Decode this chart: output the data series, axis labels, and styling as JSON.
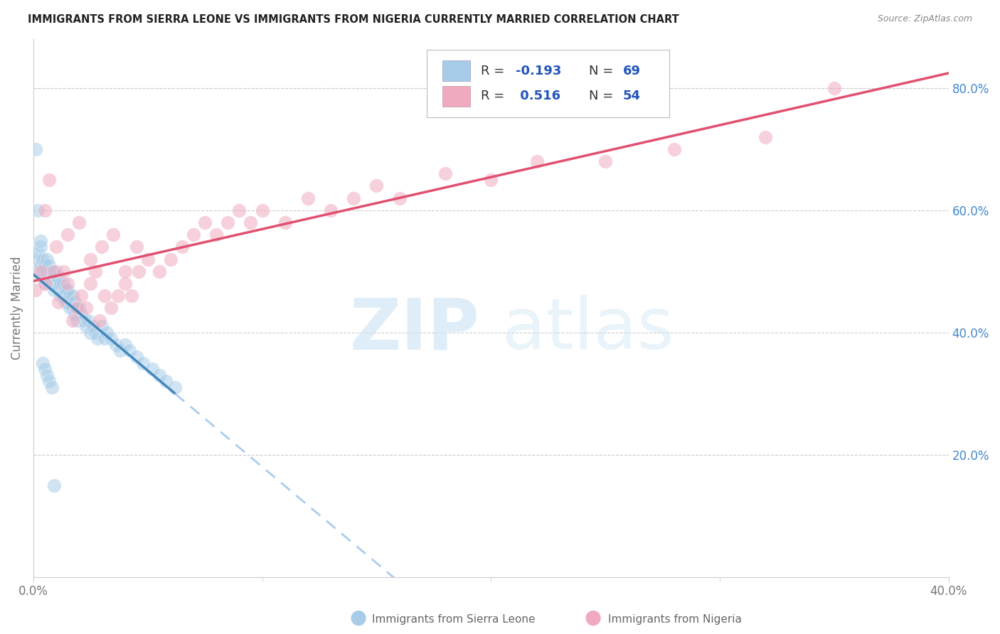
{
  "title": "IMMIGRANTS FROM SIERRA LEONE VS IMMIGRANTS FROM NIGERIA CURRENTLY MARRIED CORRELATION CHART",
  "source": "Source: ZipAtlas.com",
  "ylabel": "Currently Married",
  "xlim": [
    0.0,
    0.4
  ],
  "ylim": [
    0.0,
    0.88
  ],
  "x_ticks": [
    0.0,
    0.4
  ],
  "x_tick_labels": [
    "0.0%",
    "40.0%"
  ],
  "y_ticks_right": [
    0.2,
    0.4,
    0.6,
    0.8
  ],
  "y_tick_labels_right": [
    "20.0%",
    "40.0%",
    "60.0%",
    "80.0%"
  ],
  "R_sl": -0.193,
  "N_sl": 69,
  "R_ng": 0.516,
  "N_ng": 54,
  "color_blue": "#A8CCE8",
  "color_pink": "#F0AABF",
  "color_line_blue_solid": "#4488BB",
  "color_line_blue_dashed": "#AACCEE",
  "color_line_pink": "#E05070",
  "watermark_color": "#D0E6F5",
  "grid_color": "#CCCCCC",
  "title_color": "#222222",
  "source_color": "#888888",
  "label_color": "#777777",
  "right_axis_color": "#4488CC",
  "legend_text_color": "#333333",
  "legend_num_color": "#2255BB",
  "bottom_label_color": "#666666",
  "sl_x": [
    0.001,
    0.002,
    0.002,
    0.003,
    0.003,
    0.004,
    0.004,
    0.005,
    0.005,
    0.006,
    0.006,
    0.007,
    0.007,
    0.008,
    0.008,
    0.009,
    0.009,
    0.01,
    0.01,
    0.011,
    0.011,
    0.012,
    0.012,
    0.013,
    0.013,
    0.014,
    0.014,
    0.015,
    0.015,
    0.016,
    0.016,
    0.017,
    0.017,
    0.018,
    0.018,
    0.019,
    0.019,
    0.02,
    0.021,
    0.022,
    0.023,
    0.024,
    0.025,
    0.026,
    0.027,
    0.028,
    0.03,
    0.031,
    0.032,
    0.034,
    0.036,
    0.038,
    0.04,
    0.042,
    0.045,
    0.048,
    0.052,
    0.055,
    0.058,
    0.062,
    0.001,
    0.002,
    0.003,
    0.004,
    0.005,
    0.006,
    0.007,
    0.008,
    0.009
  ],
  "sl_y": [
    0.52,
    0.53,
    0.5,
    0.54,
    0.51,
    0.52,
    0.5,
    0.51,
    0.48,
    0.52,
    0.5,
    0.51,
    0.49,
    0.5,
    0.48,
    0.49,
    0.47,
    0.5,
    0.48,
    0.49,
    0.47,
    0.48,
    0.46,
    0.48,
    0.46,
    0.47,
    0.45,
    0.47,
    0.45,
    0.46,
    0.44,
    0.46,
    0.44,
    0.45,
    0.43,
    0.44,
    0.42,
    0.44,
    0.43,
    0.42,
    0.41,
    0.42,
    0.4,
    0.41,
    0.4,
    0.39,
    0.41,
    0.39,
    0.4,
    0.39,
    0.38,
    0.37,
    0.38,
    0.37,
    0.36,
    0.35,
    0.34,
    0.33,
    0.32,
    0.31,
    0.7,
    0.6,
    0.55,
    0.35,
    0.34,
    0.33,
    0.32,
    0.31,
    0.15
  ],
  "ng_x": [
    0.001,
    0.003,
    0.005,
    0.007,
    0.009,
    0.011,
    0.013,
    0.015,
    0.017,
    0.019,
    0.021,
    0.023,
    0.025,
    0.027,
    0.029,
    0.031,
    0.034,
    0.037,
    0.04,
    0.043,
    0.046,
    0.05,
    0.055,
    0.06,
    0.065,
    0.07,
    0.075,
    0.08,
    0.085,
    0.09,
    0.095,
    0.1,
    0.11,
    0.12,
    0.13,
    0.14,
    0.15,
    0.16,
    0.18,
    0.2,
    0.22,
    0.25,
    0.28,
    0.32,
    0.35,
    0.005,
    0.01,
    0.015,
    0.02,
    0.025,
    0.03,
    0.035,
    0.04,
    0.045
  ],
  "ng_y": [
    0.47,
    0.5,
    0.48,
    0.65,
    0.5,
    0.45,
    0.5,
    0.48,
    0.42,
    0.44,
    0.46,
    0.44,
    0.48,
    0.5,
    0.42,
    0.46,
    0.44,
    0.46,
    0.48,
    0.46,
    0.5,
    0.52,
    0.5,
    0.52,
    0.54,
    0.56,
    0.58,
    0.56,
    0.58,
    0.6,
    0.58,
    0.6,
    0.58,
    0.62,
    0.6,
    0.62,
    0.64,
    0.62,
    0.66,
    0.65,
    0.68,
    0.68,
    0.7,
    0.72,
    0.8,
    0.6,
    0.54,
    0.56,
    0.58,
    0.52,
    0.54,
    0.56,
    0.5,
    0.54
  ]
}
